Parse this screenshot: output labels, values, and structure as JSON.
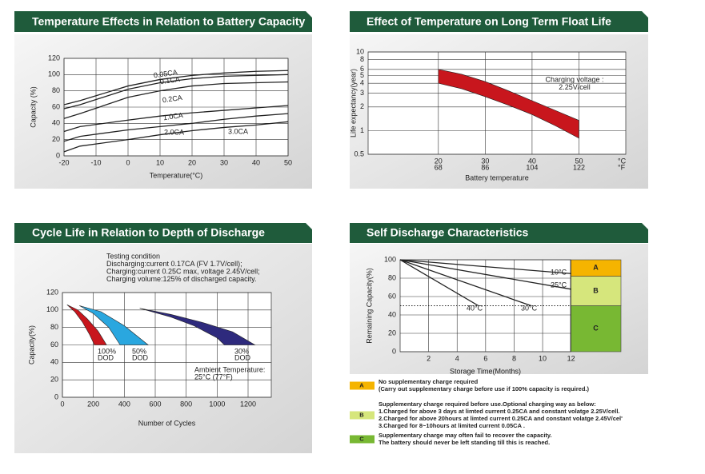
{
  "chart_data": [
    {
      "type": "line",
      "title": "Temperature Effects in Relation to Battery Capacity",
      "x_label": "Temperature(°C)",
      "y_label": "Capacity (%)",
      "x": [
        -20,
        -15,
        0,
        10,
        20,
        30,
        40,
        50
      ],
      "series": [
        {
          "name": "0.05CA",
          "color": "#222222",
          "values": [
            63,
            68,
            86,
            94,
            99,
            102,
            104,
            105
          ]
        },
        {
          "name": "0.1CA",
          "color": "#222222",
          "values": [
            58,
            63,
            82,
            90,
            95,
            98,
            99,
            100
          ]
        },
        {
          "name": "0.2CA",
          "color": "#222222",
          "values": [
            46,
            52,
            72,
            80,
            86,
            89,
            90,
            91
          ]
        },
        {
          "name": "1.0CA",
          "color": "#222222",
          "values": [
            30,
            36,
            44,
            49,
            53,
            56,
            59,
            62
          ]
        },
        {
          "name": "2.0CA",
          "color": "#222222",
          "values": [
            18,
            24,
            32,
            36,
            40,
            45,
            49,
            52
          ]
        },
        {
          "name": "3.0CA",
          "color": "#222222",
          "values": [
            5,
            12,
            20,
            26,
            31,
            35,
            38,
            42
          ]
        }
      ],
      "label_color": "#d42020",
      "xlim": [
        -20,
        50
      ],
      "xticks": [
        -20,
        -10,
        0,
        10,
        20,
        30,
        40,
        50
      ],
      "ylim": [
        0,
        120
      ],
      "yticks": [
        0,
        20,
        40,
        60,
        80,
        100,
        120
      ],
      "grid": true
    },
    {
      "type": "band",
      "title": "Effect of Temperature on Long Term Float Life",
      "x_label": "Battery temperature",
      "y_label": "Life expectancy(year)",
      "x_unit": "°C",
      "x2_unit": "°F",
      "annotations": [
        "Charging voltage :",
        "2.25V/cell"
      ],
      "series": [
        {
          "color": "#c8161d",
          "x": [
            20,
            25,
            30,
            35,
            40,
            45,
            50
          ],
          "values": [
            6,
            5.2,
            4.2,
            3.2,
            2.4,
            1.8,
            1.35
          ],
          "x_lower": [
            20,
            25,
            30,
            35,
            40,
            45,
            50
          ],
          "values_lower": [
            4,
            3.4,
            2.7,
            2.1,
            1.6,
            1.15,
            0.8
          ]
        }
      ],
      "log_y": true,
      "xlim": [
        5,
        60
      ],
      "xticks": [
        20,
        30,
        40,
        50
      ],
      "x2lim": [
        41,
        140
      ],
      "x2ticks": [
        68,
        86,
        104,
        122
      ],
      "ylim": [
        0.5,
        10
      ],
      "yticks": [
        0.5,
        1,
        2,
        3,
        4,
        5,
        6,
        8,
        10
      ],
      "grid": true
    },
    {
      "type": "band",
      "title": "Cycle Life in Relation to Depth of Discharge",
      "x_label": "Number of Cycles",
      "y_label": "Capacity(%)",
      "annotations": [
        "Testing condition",
        "Discharging:current 0.17CA (FV 1.7V/cell);",
        "Charging:current 0.25C max, voltage 2.45V/cell;",
        "Charging volume:125% of discharged capacity."
      ],
      "ambient": [
        "Ambient Temperature:",
        "25°C (77°F)"
      ],
      "series": [
        {
          "label": [
            "100%",
            "DOD"
          ],
          "color": "#c8161d",
          "x": [
            30,
            100,
            160,
            230,
            285
          ],
          "values": [
            106,
            100,
            90,
            76,
            60
          ],
          "x_lower": [
            30,
            80,
            130,
            175,
            207
          ],
          "values_lower": [
            106,
            98,
            86,
            72,
            60
          ]
        },
        {
          "label": [
            "50%",
            "DOD"
          ],
          "color": "#2aa7df",
          "x": [
            110,
            250,
            400,
            554
          ],
          "values": [
            105,
            98,
            82,
            60
          ],
          "x_lower": [
            110,
            200,
            300,
            373
          ],
          "values_lower": [
            105,
            96,
            80,
            60
          ]
        },
        {
          "label": [
            "30%",
            "DOD"
          ],
          "color": "#2e2a7d",
          "x": [
            500,
            700,
            900,
            1100,
            1244
          ],
          "values": [
            102,
            95,
            86,
            75,
            60
          ],
          "x_lower": [
            500,
            700,
            850,
            1000,
            1047
          ],
          "values_lower": [
            102,
            92,
            82,
            68,
            60
          ]
        }
      ],
      "xlim": [
        0,
        1350
      ],
      "xticks": [
        0,
        200,
        400,
        600,
        800,
        1000,
        1200
      ],
      "ylim": [
        0,
        120
      ],
      "yticks": [
        0,
        20,
        40,
        60,
        80,
        100,
        120
      ],
      "grid": true
    },
    {
      "type": "line",
      "title": "Self Discharge Characteristics",
      "x_label": "Storage Time(Months)",
      "y_label": "Remaining Capacity(%)",
      "series": [
        {
          "name": "10°C",
          "color": "#222222",
          "x": [
            0,
            12
          ],
          "values": [
            100,
            85
          ]
        },
        {
          "name": "25°C",
          "color": "#222222",
          "x": [
            0,
            12
          ],
          "values": [
            100,
            68
          ]
        },
        {
          "name": "30°C",
          "color": "#222222",
          "x": [
            0,
            9.2
          ],
          "values": [
            100,
            50
          ]
        },
        {
          "name": "40°C",
          "color": "#222222",
          "x": [
            0,
            5.5
          ],
          "values": [
            100,
            50
          ]
        }
      ],
      "threshold": 50,
      "zones": [
        {
          "label": "A",
          "color": "#f5b400",
          "range": [
            82,
            100
          ]
        },
        {
          "label": "B",
          "color": "#d6e67c",
          "range": [
            50,
            82
          ]
        },
        {
          "label": "C",
          "color": "#78b833",
          "range": [
            0,
            50
          ]
        }
      ],
      "xlim": [
        0,
        15.5
      ],
      "xticks": [
        2,
        4,
        6,
        8,
        10,
        12
      ],
      "ylim": [
        0,
        100
      ],
      "yticks": [
        0,
        20,
        40,
        60,
        80,
        100
      ],
      "grid": true
    }
  ],
  "notes": [
    {
      "label": "A",
      "color": "#f5b400",
      "lines": [
        "No supplementary charge required",
        "(Carry out supplementary charge before use if 100% capacity is required.)"
      ]
    },
    {
      "label": "B",
      "color": "#d6e67c",
      "lines": [
        "Supplementary charge required before use.Optional charging way as below:",
        "1.Charged for above 3 days at limted current 0.25CA and constant volatge 2.25V/cell.",
        "2.Charged for above 20hours at limted current 0.25CA and constant volatge 2.45V/cel'",
        "3.Charged for 8~10hours at limited current 0.05CA ."
      ]
    },
    {
      "label": "C",
      "color": "#78b833",
      "lines": [
        "Supplementary charge may often fail to recover the capacity.",
        "The battery should never be  left standing till this is reached."
      ]
    }
  ]
}
